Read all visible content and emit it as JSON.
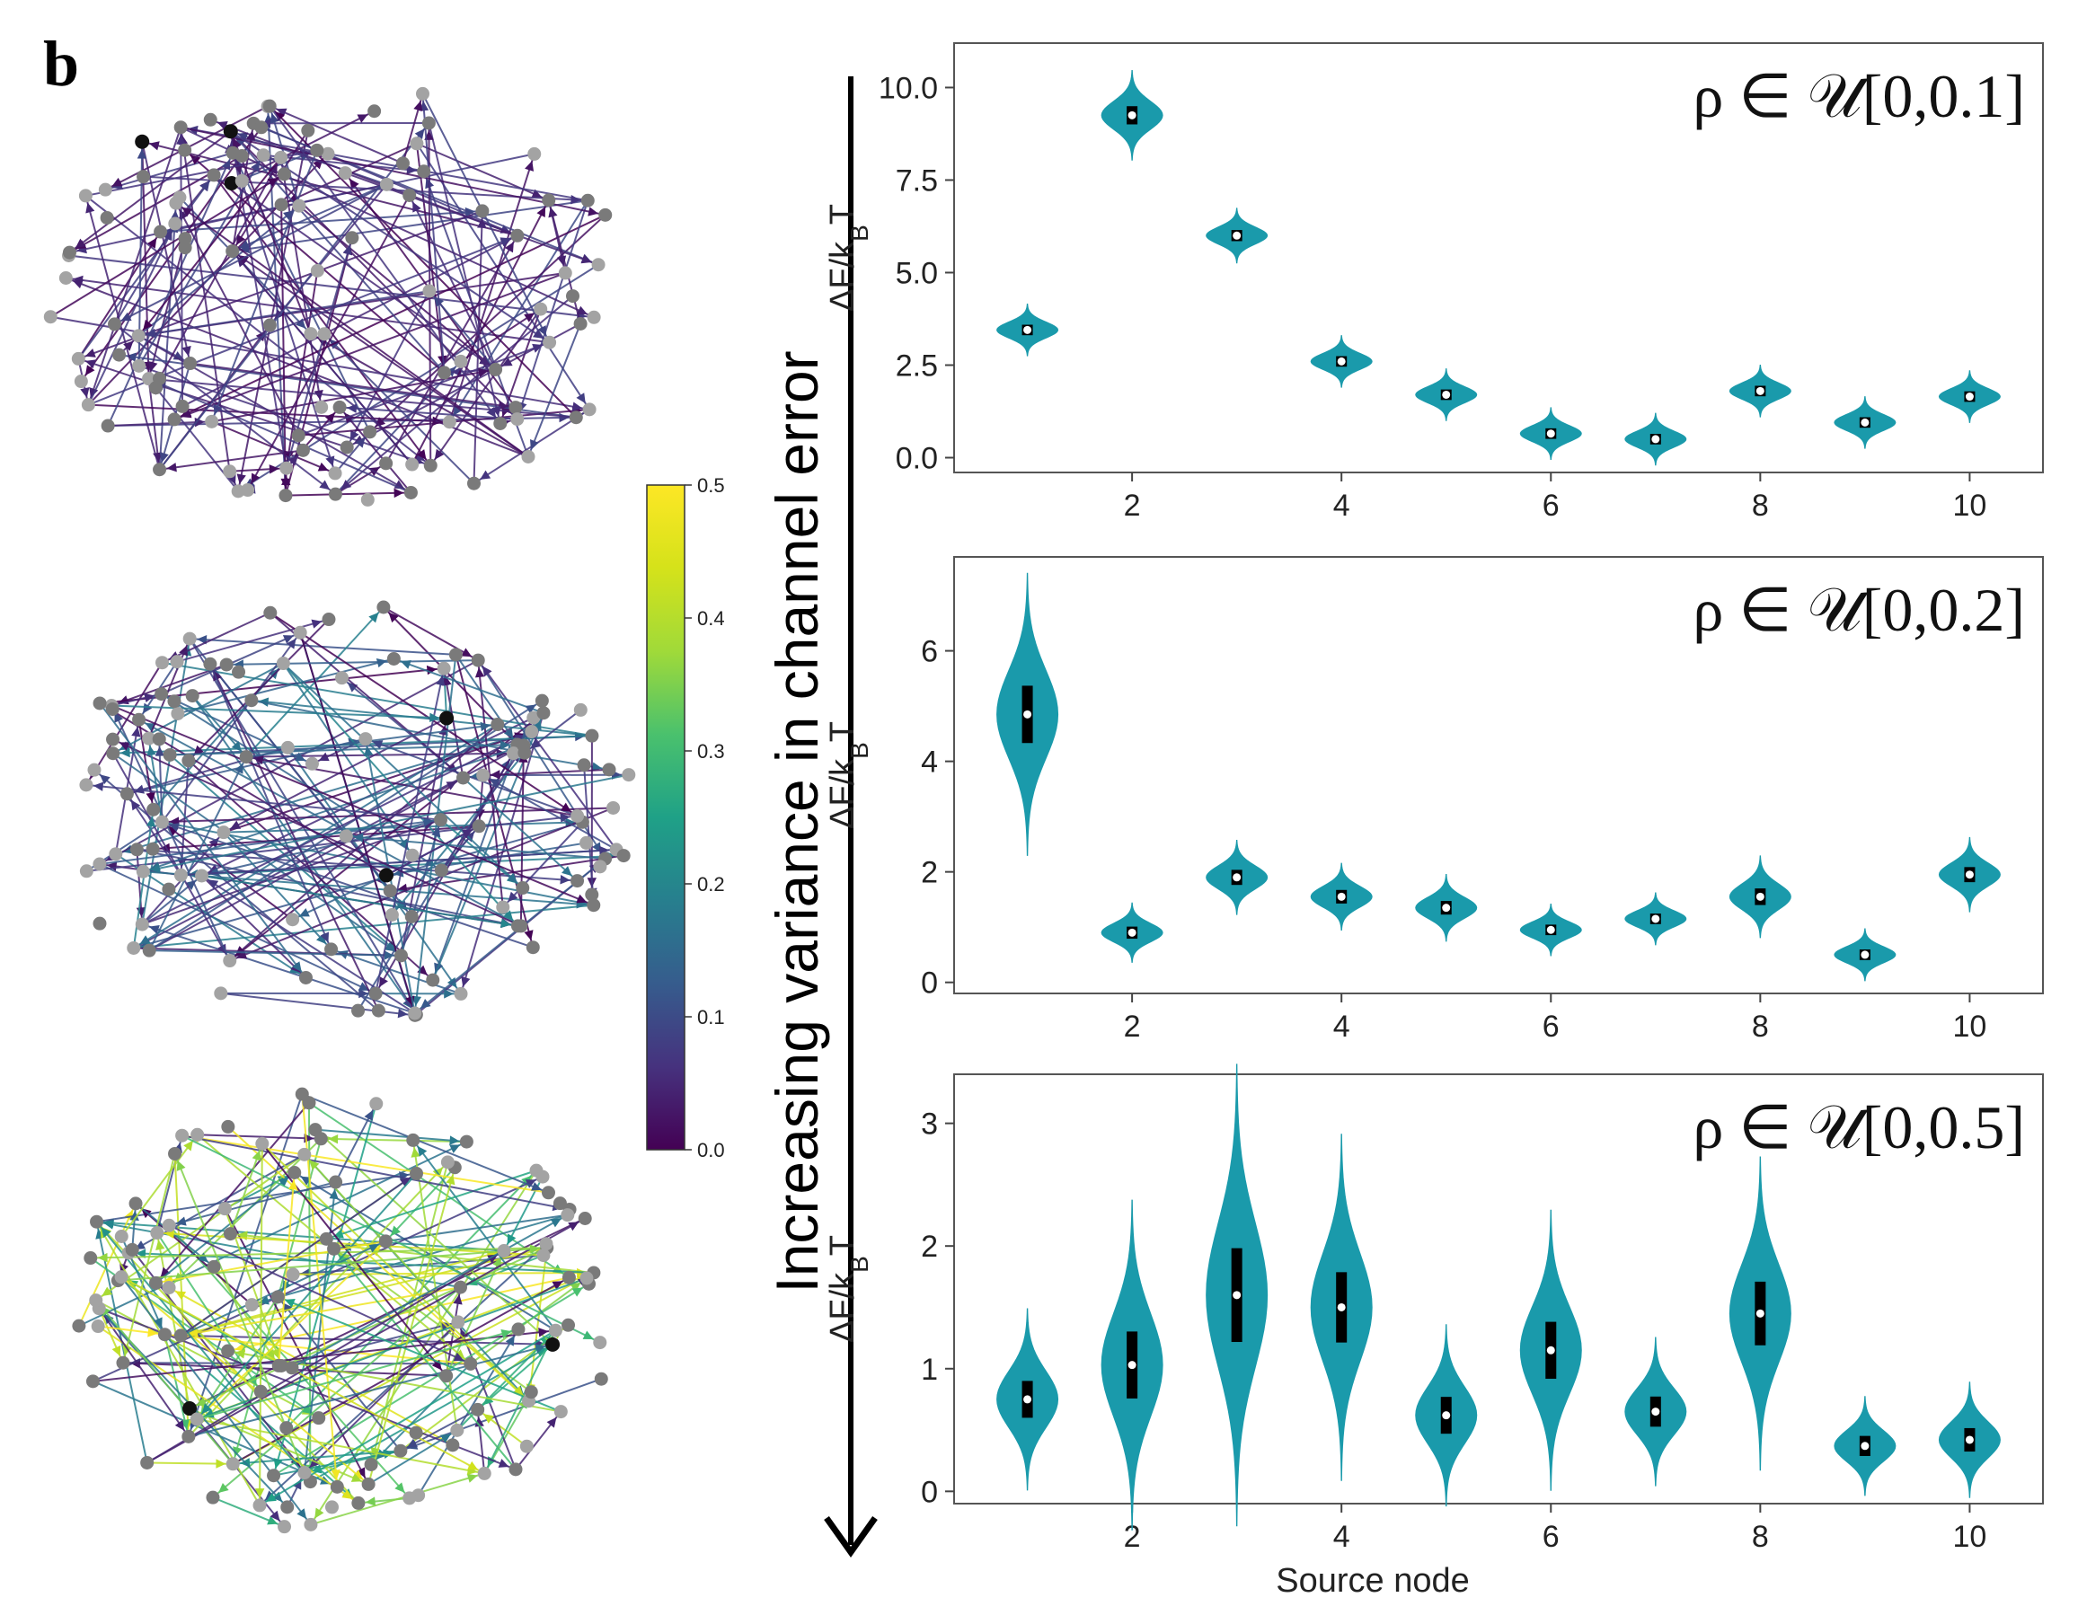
{
  "panel_label": "b",
  "arrow_label": "Increasing variance in channel error",
  "colorbar": {
    "ticks": [
      "0.0",
      "0.1",
      "0.2",
      "0.3",
      "0.4",
      "0.5"
    ],
    "colormap": [
      "#440154",
      "#3b528b",
      "#21918c",
      "#5ec962",
      "#fde725"
    ],
    "range": [
      0,
      0.5
    ]
  },
  "networks": [
    {
      "name": "network-low-variance",
      "max_error": 0.1,
      "highlighted_nodes": 3
    },
    {
      "name": "network-mid-variance",
      "max_error": 0.2,
      "highlighted_nodes": 2
    },
    {
      "name": "network-high-variance",
      "max_error": 0.5,
      "highlighted_nodes": 2
    }
  ],
  "violin_color": "#1a9aab",
  "chart_data": [
    {
      "type": "violin",
      "annotation": "ρ ∈ 𝒰[0,0.1]",
      "ylabel": "ΔF/k_BT",
      "xlabel": "",
      "x": [
        1,
        2,
        3,
        4,
        5,
        6,
        7,
        8,
        9,
        10
      ],
      "medians": [
        3.45,
        9.25,
        6.0,
        2.6,
        1.7,
        0.65,
        0.5,
        1.8,
        0.95,
        1.65
      ],
      "spread": [
        0.35,
        0.9,
        0.55,
        0.2,
        0.18,
        0.1,
        0.13,
        0.16,
        0.12,
        0.15
      ],
      "xticks": [
        2,
        4,
        6,
        8,
        10
      ],
      "yticks": [
        0.0,
        2.5,
        5.0,
        7.5,
        10.0
      ],
      "ytick_labels": [
        "0.0",
        "2.5",
        "5.0",
        "7.5",
        "10.0"
      ],
      "ylim": [
        -0.4,
        11.2
      ],
      "xlim": [
        0.3,
        10.7
      ]
    },
    {
      "type": "violin",
      "annotation": "ρ ∈ 𝒰[0,0.2]",
      "ylabel": "ΔF/k_BT",
      "xlabel": "",
      "x": [
        1,
        2,
        3,
        4,
        5,
        6,
        7,
        8,
        9,
        10
      ],
      "medians": [
        4.85,
        0.9,
        1.9,
        1.55,
        1.35,
        0.95,
        1.15,
        1.55,
        0.5,
        1.95
      ],
      "spread": [
        1.9,
        0.4,
        0.5,
        0.45,
        0.45,
        0.3,
        0.35,
        0.55,
        0.35,
        0.5
      ],
      "xticks": [
        2,
        4,
        6,
        8,
        10
      ],
      "yticks": [
        0,
        2,
        4,
        6
      ],
      "ytick_labels": [
        "0",
        "2",
        "4",
        "6"
      ],
      "ylim": [
        -0.2,
        7.7
      ],
      "xlim": [
        0.3,
        10.7
      ]
    },
    {
      "type": "violin",
      "annotation": "ρ ∈ 𝒰[0,0.5]",
      "ylabel": "ΔF/k_BT",
      "xlabel": "Source node",
      "x": [
        1,
        2,
        3,
        4,
        5,
        6,
        7,
        8,
        9,
        10
      ],
      "medians": [
        0.75,
        1.03,
        1.6,
        1.5,
        0.62,
        1.15,
        0.65,
        1.45,
        0.37,
        0.42
      ],
      "spread": [
        0.55,
        1.0,
        1.4,
        1.05,
        0.55,
        0.85,
        0.45,
        0.95,
        0.3,
        0.35
      ],
      "xticks": [
        2,
        4,
        6,
        8,
        10
      ],
      "yticks": [
        0,
        1,
        2,
        3
      ],
      "ytick_labels": [
        "0",
        "1",
        "2",
        "3"
      ],
      "ylim": [
        -0.1,
        3.4
      ],
      "xlim": [
        0.3,
        10.7
      ]
    }
  ]
}
